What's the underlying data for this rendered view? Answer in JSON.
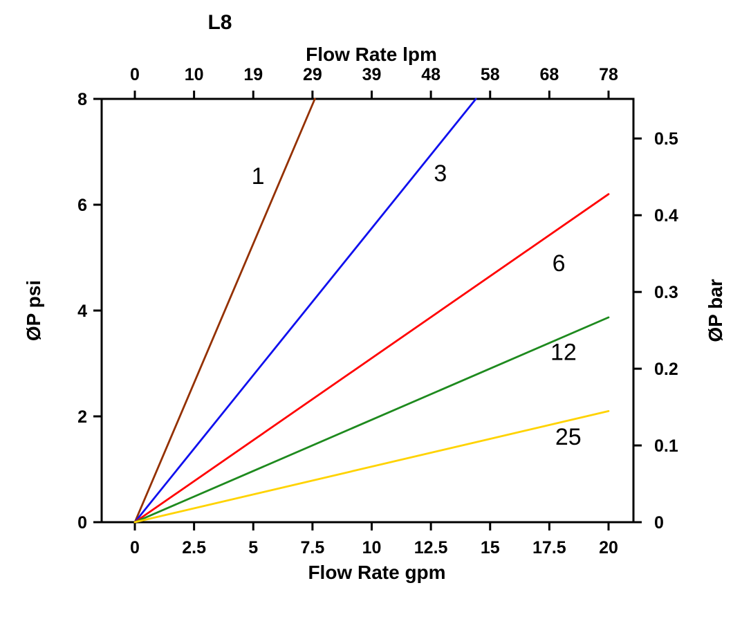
{
  "chart_data": {
    "type": "line",
    "title": "L8",
    "top_axis": {
      "label": "Flow Rate lpm",
      "ticks": [
        "0",
        "10",
        "19",
        "29",
        "39",
        "48",
        "58",
        "68",
        "78"
      ],
      "tick_values_gpm": [
        0,
        2.5,
        5,
        7.5,
        10,
        12.5,
        15,
        17.5,
        20
      ]
    },
    "bottom_axis": {
      "label": "Flow Rate gpm",
      "ticks": [
        "0",
        "2.5",
        "5",
        "7.5",
        "10",
        "12.5",
        "15",
        "17.5",
        "20"
      ],
      "tick_values": [
        0,
        2.5,
        5,
        7.5,
        10,
        12.5,
        15,
        17.5,
        20
      ],
      "range": [
        0,
        20
      ]
    },
    "left_axis": {
      "label": "ØP psi",
      "ticks": [
        "0",
        "2",
        "4",
        "6",
        "8"
      ],
      "tick_values": [
        0,
        2,
        4,
        6,
        8
      ],
      "range": [
        0,
        8
      ]
    },
    "right_axis": {
      "label": "ØP bar",
      "ticks": [
        "0",
        "0.1",
        "0.2",
        "0.3",
        "0.4",
        "0.5"
      ],
      "tick_values_bar": [
        0,
        0.1,
        0.2,
        0.3,
        0.4,
        0.5
      ],
      "psi_per_bar": 14.5038
    },
    "series": [
      {
        "name": "1",
        "color": "#943000",
        "points_gpm_psi": [
          [
            0,
            0
          ],
          [
            7.6,
            8
          ]
        ],
        "label_pos_gpm_psi": [
          5.2,
          6.55
        ]
      },
      {
        "name": "3",
        "color": "#1010EE",
        "points_gpm_psi": [
          [
            0,
            0
          ],
          [
            14.4,
            8
          ]
        ],
        "label_pos_gpm_psi": [
          12.9,
          6.6
        ]
      },
      {
        "name": "6",
        "color": "#FF0000",
        "points_gpm_psi": [
          [
            0,
            0
          ],
          [
            20,
            6.2
          ]
        ],
        "label_pos_gpm_psi": [
          17.9,
          4.9
        ]
      },
      {
        "name": "12",
        "color": "#1E8A1E",
        "points_gpm_psi": [
          [
            0,
            0
          ],
          [
            20,
            3.87
          ]
        ],
        "label_pos_gpm_psi": [
          18.1,
          3.22
        ]
      },
      {
        "name": "25",
        "color": "#FFD300",
        "points_gpm_psi": [
          [
            0,
            0
          ],
          [
            20,
            2.1
          ]
        ],
        "label_pos_gpm_psi": [
          18.3,
          1.62
        ]
      }
    ],
    "colors": {
      "axis": "#000000",
      "background": "#FFFFFF"
    }
  }
}
